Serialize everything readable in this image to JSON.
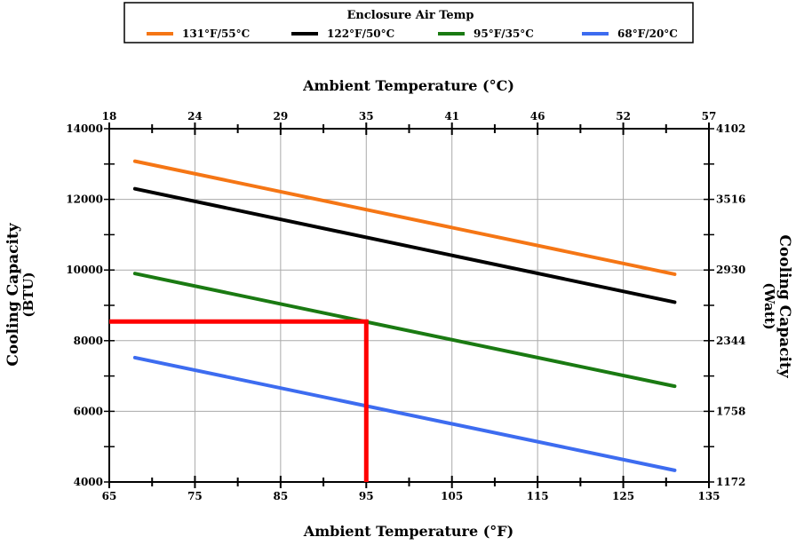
{
  "chart_data": {
    "type": "line",
    "legend": {
      "title": "Enclosure Air Temp",
      "placement": "top"
    },
    "xlabel": "Ambient Temperature (°F)",
    "x2label": "Ambient Temperature (°C)",
    "ylabel": "Cooling Capacity",
    "ylabel_unit": "(BTU)",
    "y2label": "Cooling Capacity",
    "y2label_unit": "(Watt)",
    "xlim": [
      65,
      135
    ],
    "ylim": [
      4000,
      14000
    ],
    "x_ticks": [
      "65",
      "75",
      "85",
      "95",
      "105",
      "115",
      "125",
      "135"
    ],
    "x2_ticks": [
      "18",
      "24",
      "29",
      "35",
      "41",
      "46",
      "52",
      "57"
    ],
    "y_ticks": [
      "4000",
      "6000",
      "8000",
      "10000",
      "12000",
      "14000"
    ],
    "y2_ticks": [
      "1172",
      "1758",
      "2344",
      "2930",
      "3516",
      "4102"
    ],
    "grid": true,
    "series": [
      {
        "name": "131°F/55°C",
        "color": "#f57615",
        "x": [
          68,
          131
        ],
        "y": [
          13080,
          9880
        ]
      },
      {
        "name": "122°F/50°C",
        "color": "#000000",
        "x": [
          68,
          131
        ],
        "y": [
          12300,
          9090
        ]
      },
      {
        "name": "95°F/35°C",
        "color": "#1a7a12",
        "x": [
          68,
          131
        ],
        "y": [
          9900,
          6710
        ]
      },
      {
        "name": "68°F/20°C",
        "color": "#3d6cf0",
        "x": [
          68,
          131
        ],
        "y": [
          7520,
          4330
        ]
      }
    ],
    "highlight": {
      "color": "#ff0000",
      "x": 95,
      "y": 8540
    }
  }
}
